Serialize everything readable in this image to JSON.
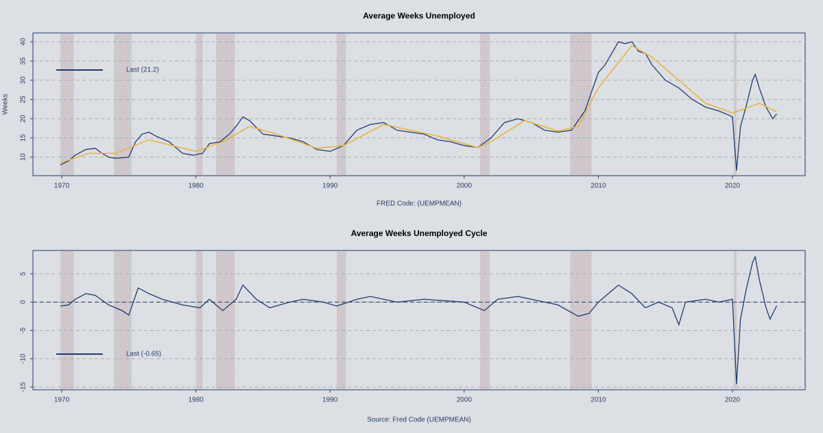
{
  "chart_data": [
    {
      "type": "line",
      "title": "Average Weeks Unemployed",
      "xlabel": "FRED Code: (UEMPMEAN)",
      "ylabel": "Weeks",
      "xlim": [
        1967.85,
        2025.42
      ],
      "ylim": [
        5.18,
        42.3
      ],
      "xticks": [
        1970,
        1980,
        1990,
        2000,
        2010,
        2020
      ],
      "yticks": [
        10,
        15,
        20,
        25,
        30,
        35,
        40
      ],
      "grid": true,
      "legend": "upper left",
      "recessions": [
        [
          1969.9,
          1970.9
        ],
        [
          1973.9,
          1975.2
        ],
        [
          1980.0,
          1980.5
        ],
        [
          1981.5,
          1982.9
        ],
        [
          1990.5,
          1991.2
        ],
        [
          2001.2,
          2001.9
        ],
        [
          2007.9,
          2009.5
        ],
        [
          2020.1,
          2020.3
        ]
      ],
      "series": [
        {
          "name": "Last (21.2)",
          "color": "#1f3a6e",
          "x": [
            1969.9,
            1970.5,
            1971,
            1971.8,
            1972.5,
            1973,
            1973.5,
            1974,
            1975,
            1975.5,
            1976,
            1976.5,
            1977,
            1978,
            1979,
            1979.8,
            1980.5,
            1981,
            1981.8,
            1982.5,
            1983,
            1983.5,
            1984,
            1985,
            1986,
            1987,
            1988,
            1989,
            1990,
            1991,
            1992,
            1993,
            1994,
            1995,
            1996,
            1997,
            1998,
            1999,
            2000,
            2001,
            2002,
            2003,
            2004,
            2005,
            2006,
            2007,
            2008,
            2009,
            2009.5,
            2010,
            2010.5,
            2011,
            2011.5,
            2012,
            2012.5,
            2013,
            2013.5,
            2014,
            2015,
            2016,
            2017,
            2018,
            2019,
            2020,
            2020.3,
            2020.6,
            2021,
            2021.5,
            2021.7,
            2022,
            2022.5,
            2023,
            2023.3
          ],
          "values": [
            8,
            9,
            10.5,
            12,
            12.3,
            11,
            10,
            9.7,
            10,
            14,
            16,
            16.5,
            15.5,
            14,
            11,
            10.5,
            11,
            13.5,
            14,
            16,
            18,
            20.5,
            19.5,
            16,
            15.5,
            15,
            14,
            12,
            11.5,
            13,
            17,
            18.5,
            19,
            17,
            16.5,
            16,
            14.5,
            14,
            13,
            12.5,
            15,
            19,
            20,
            19,
            17,
            16.5,
            17,
            22,
            27,
            32,
            34,
            37,
            40,
            39.5,
            40,
            37.5,
            37,
            34,
            30,
            28,
            25,
            23,
            22,
            20.5,
            6.5,
            18,
            23,
            30,
            31.5,
            28,
            23,
            20,
            21.2
          ]
        },
        {
          "color": "#e8b441",
          "x": [
            1969.9,
            1972,
            1974,
            1976.5,
            1980,
            1982,
            1984,
            1986,
            1989,
            1991,
            1994,
            1998,
            2001,
            2002,
            2004.5,
            2007,
            2008.5,
            2010,
            2012.5,
            2014,
            2016,
            2018,
            2020,
            2022,
            2023.3
          ],
          "values": [
            8.5,
            11,
            11,
            14.5,
            11.5,
            14,
            18,
            16,
            12.3,
            13,
            18.5,
            15.5,
            12.5,
            14,
            19.5,
            16.8,
            18,
            28,
            39,
            36,
            30,
            24,
            21.5,
            24,
            21.8
          ]
        }
      ]
    },
    {
      "type": "line",
      "title": "Average Weeks Unemployed Cycle",
      "xlabel": "Source: Fred Code (UEMPMEAN)",
      "xlim": [
        1967.85,
        2025.42
      ],
      "ylim": [
        -15.48,
        9.12
      ],
      "xticks": [
        1970,
        1980,
        1990,
        2000,
        2010,
        2020
      ],
      "yticks": [
        -15,
        -10,
        -5,
        0,
        5
      ],
      "grid": true,
      "hline": 0,
      "legend": "lower left",
      "recessions": [
        [
          1969.9,
          1970.9
        ],
        [
          1973.9,
          1975.2
        ],
        [
          1980.0,
          1980.5
        ],
        [
          1981.5,
          1982.9
        ],
        [
          1990.5,
          1991.2
        ],
        [
          2001.2,
          2001.9
        ],
        [
          2007.9,
          2009.5
        ],
        [
          2020.1,
          2020.3
        ]
      ],
      "series": [
        {
          "name": "Last (-0.65)",
          "color": "#1f3a6e",
          "x": [
            1969.9,
            1970.5,
            1971,
            1971.8,
            1972.5,
            1973.5,
            1974.5,
            1975,
            1975.7,
            1976.5,
            1977.5,
            1979,
            1980.3,
            1981,
            1982,
            1983,
            1983.5,
            1984.5,
            1985.5,
            1987,
            1988,
            1989.5,
            1990.5,
            1992,
            1993,
            1995,
            1997,
            2000,
            2001.5,
            2002.5,
            2004,
            2006,
            2007,
            2008.5,
            2009.3,
            2010,
            2010.5,
            2011.5,
            2012.5,
            2013.5,
            2014.5,
            2015.5,
            2016,
            2016.5,
            2018,
            2019,
            2020,
            2020.3,
            2020.6,
            2021,
            2021.5,
            2021.7,
            2022,
            2022.5,
            2022.8,
            2023.3
          ],
          "values": [
            -0.7,
            -0.5,
            0.5,
            1.5,
            1.2,
            -0.5,
            -1.5,
            -2.3,
            2.5,
            1.5,
            0.5,
            -0.5,
            -1,
            0.5,
            -1.5,
            0.5,
            3,
            0.5,
            -1,
            0,
            0.5,
            0,
            -0.7,
            0.5,
            1,
            0,
            0.5,
            0,
            -1.5,
            0.5,
            1,
            0,
            -0.5,
            -2.5,
            -2,
            0,
            1,
            3,
            1.5,
            -1,
            0,
            -1,
            -4,
            0,
            0.5,
            0,
            0.5,
            -14.5,
            -3,
            2,
            7,
            8,
            4,
            -1,
            -3,
            -0.65
          ]
        }
      ]
    }
  ]
}
